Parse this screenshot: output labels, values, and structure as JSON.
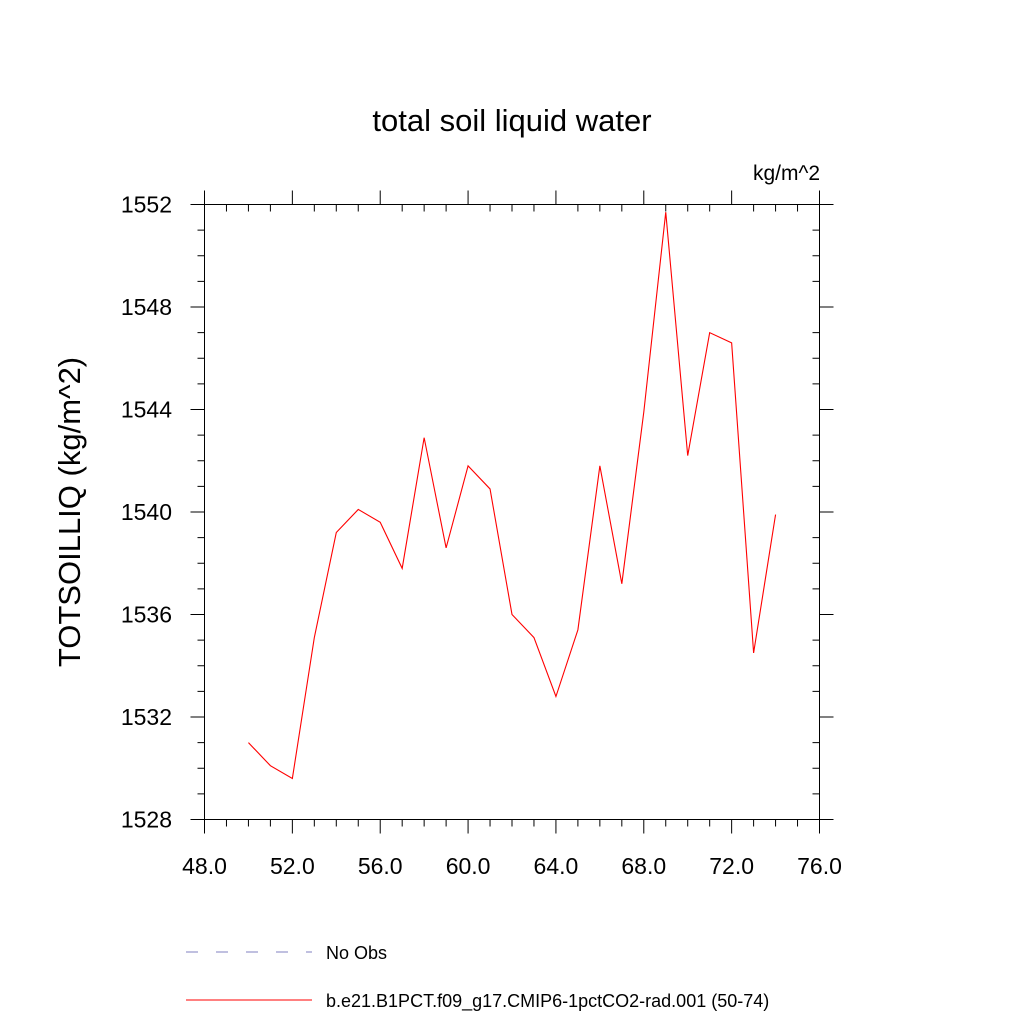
{
  "chart_data": {
    "type": "line",
    "title": "total soil liquid water",
    "units_label": "kg/m^2",
    "ylabel": "TOTSOILLIQ  (kg/m^2)",
    "xlabel": "",
    "xlim": [
      48,
      76
    ],
    "ylim": [
      1528,
      1552
    ],
    "x_ticks": [
      48,
      52,
      56,
      60,
      64,
      68,
      72,
      76
    ],
    "x_tick_labels": [
      "48.0",
      "52.0",
      "56.0",
      "60.0",
      "64.0",
      "68.0",
      "72.0",
      "76.0"
    ],
    "y_ticks": [
      1528,
      1532,
      1536,
      1540,
      1544,
      1548,
      1552
    ],
    "y_tick_labels": [
      "1528",
      "1532",
      "1536",
      "1540",
      "1544",
      "1548",
      "1552"
    ],
    "x_minor_step": 1,
    "y_minor_step": 1,
    "grid": false,
    "legend_position": "bottom",
    "series": [
      {
        "name": "No Obs",
        "color": "#8080c0",
        "dash": "dashed",
        "x": [],
        "y": []
      },
      {
        "name": "b.e21.B1PCT.f09_g17.CMIP6-1pctCO2-rad.001 (50-74)",
        "color": "#ff0000",
        "dash": "solid",
        "x": [
          50,
          51,
          52,
          53,
          54,
          55,
          56,
          57,
          58,
          59,
          60,
          61,
          62,
          63,
          64,
          65,
          66,
          67,
          68,
          69,
          70,
          71,
          72,
          73,
          74
        ],
        "y": [
          1531.0,
          1530.1,
          1529.6,
          1535.1,
          1539.2,
          1540.1,
          1539.6,
          1537.8,
          1542.9,
          1538.6,
          1541.8,
          1540.9,
          1536.0,
          1535.1,
          1532.8,
          1535.4,
          1541.8,
          1537.2,
          1543.9,
          1551.7,
          1542.2,
          1547.0,
          1546.6,
          1534.5,
          1539.9
        ]
      }
    ]
  }
}
